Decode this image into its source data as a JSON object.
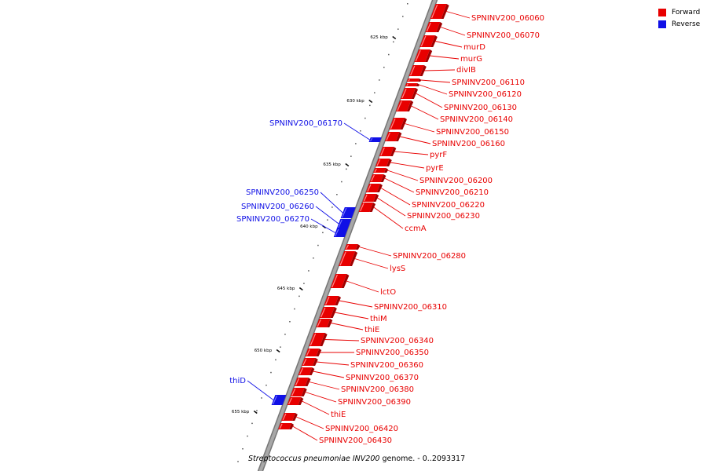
{
  "colors": {
    "forward": "#e80000",
    "reverse": "#1010e6",
    "backbone": "#a8a8a8",
    "tick": "#111111"
  },
  "legend": {
    "forward_label": "Forward",
    "reverse_label": "Reverse"
  },
  "caption": {
    "organism": "Streptococcus pneumoniae INV200",
    "suffix": " genome. - 0..2093317"
  },
  "ticks": [
    {
      "label": "625 kbp"
    },
    {
      "label": "630 kbp"
    },
    {
      "label": "635 kbp"
    },
    {
      "label": "640 kbp"
    },
    {
      "label": "645 kbp"
    },
    {
      "label": "650 kbp"
    },
    {
      "label": "655 kbp"
    }
  ],
  "forward_genes": [
    "SPNINV200_06060",
    "SPNINV200_06070",
    "murD",
    "murG",
    "divIB",
    "SPNINV200_06110",
    "SPNINV200_06120",
    "SPNINV200_06130",
    "SPNINV200_06140",
    "SPNINV200_06150",
    "SPNINV200_06160",
    "pyrF",
    "pyrE",
    "SPNINV200_06200",
    "SPNINV200_06210",
    "SPNINV200_06220",
    "SPNINV200_06230",
    "ccmA",
    "SPNINV200_06280",
    "lysS",
    "lctO",
    "SPNINV200_06310",
    "thiM",
    "thiE",
    "SPNINV200_06340",
    "SPNINV200_06350",
    "SPNINV200_06360",
    "SPNINV200_06370",
    "SPNINV200_06380",
    "SPNINV200_06390",
    "thiE",
    "SPNINV200_06420",
    "SPNINV200_06430"
  ],
  "reverse_genes": [
    "SPNINV200_06170",
    "SPNINV200_06250",
    "SPNINV200_06260",
    "SPNINV200_06270",
    "thiD"
  ]
}
